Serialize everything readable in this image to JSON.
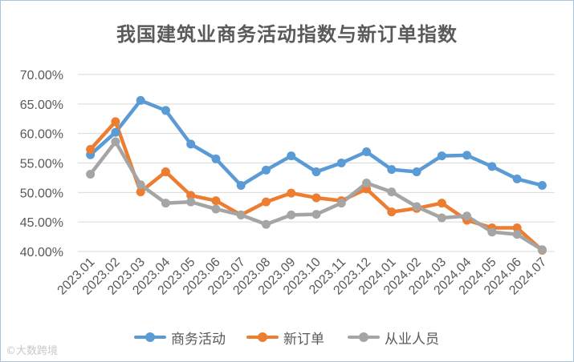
{
  "watermark": "©大数跨境",
  "chart_data": {
    "type": "line",
    "title": "我国建筑业商务活动指数与新订单指数",
    "categories": [
      "2023.01",
      "2023.02",
      "2023.03",
      "2023.04",
      "2023.05",
      "2023.06",
      "2023.07",
      "2023.08",
      "2023.09",
      "2023.10",
      "2023.11",
      "2023.12",
      "2024.01",
      "2024.02",
      "2024.03",
      "2024.04",
      "2024.05",
      "2024.06",
      "2024.07"
    ],
    "y_ticks": [
      "70.00%",
      "65.00%",
      "60.00%",
      "55.00%",
      "50.00%",
      "45.00%",
      "40.00%"
    ],
    "ylim": [
      40,
      70
    ],
    "grid": true,
    "legend_position": "bottom",
    "series": [
      {
        "name": "商务活动",
        "color": "#5b9bd5",
        "values": [
          56.4,
          60.2,
          65.6,
          63.9,
          58.2,
          55.7,
          51.2,
          53.8,
          56.2,
          53.5,
          55.0,
          56.9,
          53.9,
          53.5,
          56.2,
          56.3,
          54.4,
          52.3,
          51.2
        ]
      },
      {
        "name": "新订单",
        "color": "#ed7d31",
        "values": [
          57.3,
          62.0,
          50.1,
          53.5,
          49.5,
          48.6,
          46.2,
          48.4,
          49.9,
          49.1,
          48.6,
          50.6,
          46.7,
          47.3,
          48.2,
          45.3,
          44.0,
          44.0,
          40.2
        ]
      },
      {
        "name": "从业人员",
        "color": "#a5a5a5",
        "values": [
          53.1,
          58.6,
          51.3,
          48.2,
          48.4,
          47.2,
          46.2,
          44.6,
          46.2,
          46.3,
          48.2,
          51.6,
          50.1,
          47.6,
          45.7,
          46.0,
          43.3,
          42.9,
          40.3
        ]
      }
    ]
  }
}
